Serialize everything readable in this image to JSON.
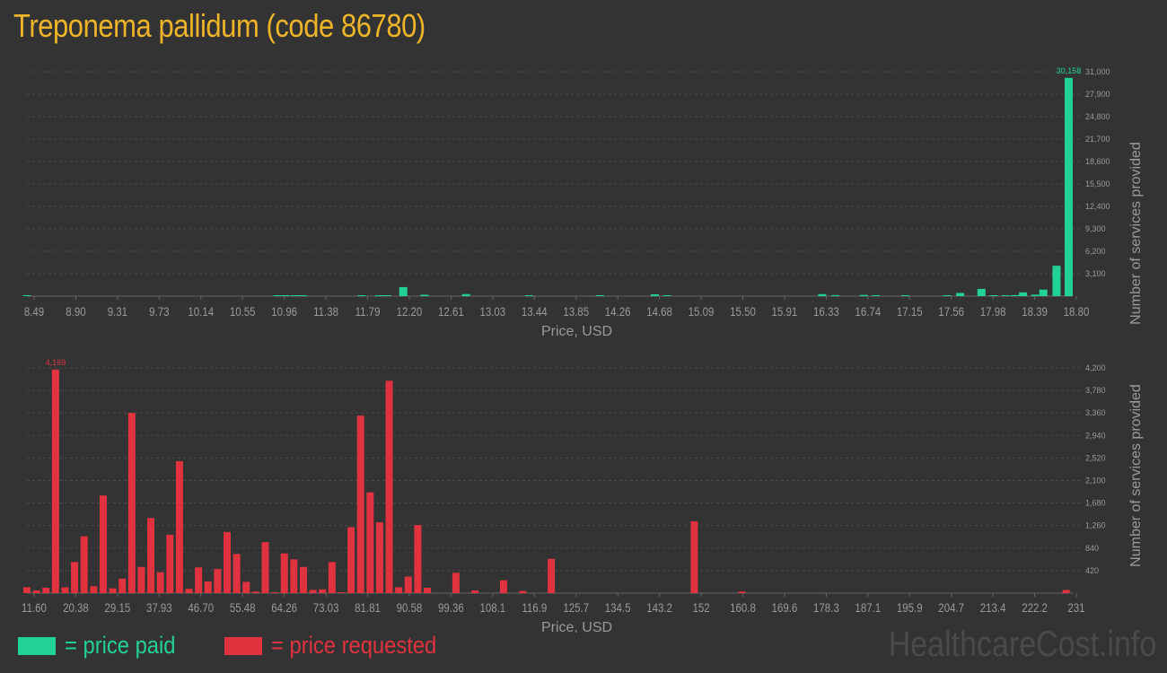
{
  "title": "Treponema pallidum (code 86780)",
  "watermark": "HealthcareCost.info",
  "legend": {
    "paid_label": "= price paid",
    "requested_label": "= price requested"
  },
  "colors": {
    "background": "#333333",
    "paid": "#22d196",
    "requested": "#e0323f",
    "title": "#f0b429",
    "grid": "#4a4a4a",
    "axis_text": "#9a9a9a"
  },
  "chart_data": [
    {
      "type": "bar",
      "series_name": "price paid",
      "xlabel": "Price, USD",
      "ylabel": "Number of services provided",
      "x_tick_labels": [
        "8.49",
        "8.90",
        "9.31",
        "9.73",
        "10.14",
        "10.55",
        "10.96",
        "11.38",
        "11.79",
        "12.20",
        "12.61",
        "13.03",
        "13.44",
        "13.85",
        "14.26",
        "14.68",
        "15.09",
        "15.50",
        "15.91",
        "16.33",
        "16.74",
        "17.15",
        "17.56",
        "17.98",
        "18.39",
        "18.80"
      ],
      "y_tick_labels": [
        "3,100",
        "6,200",
        "9,300",
        "12,400",
        "15,500",
        "18,600",
        "21,700",
        "24,800",
        "27,900",
        "31,000"
      ],
      "y_ticks": [
        3100,
        6200,
        9300,
        12400,
        15500,
        18600,
        21700,
        24800,
        27900,
        31000
      ],
      "ylim": [
        0,
        31000
      ],
      "xlim": [
        8.49,
        18.8
      ],
      "max_label": "30,158",
      "max_value": 30158,
      "bars": [
        {
          "x": 8.49,
          "y": 60
        },
        {
          "x": 10.96,
          "y": 45
        },
        {
          "x": 11.04,
          "y": 45
        },
        {
          "x": 11.13,
          "y": 45
        },
        {
          "x": 11.21,
          "y": 45
        },
        {
          "x": 11.79,
          "y": 40
        },
        {
          "x": 11.96,
          "y": 90
        },
        {
          "x": 12.04,
          "y": 50
        },
        {
          "x": 12.2,
          "y": 1250
        },
        {
          "x": 12.41,
          "y": 190
        },
        {
          "x": 12.82,
          "y": 280
        },
        {
          "x": 13.44,
          "y": 60
        },
        {
          "x": 14.14,
          "y": 50
        },
        {
          "x": 14.68,
          "y": 250
        },
        {
          "x": 14.8,
          "y": 70
        },
        {
          "x": 16.33,
          "y": 280
        },
        {
          "x": 16.46,
          "y": 140
        },
        {
          "x": 16.74,
          "y": 160
        },
        {
          "x": 16.86,
          "y": 60
        },
        {
          "x": 17.15,
          "y": 55
        },
        {
          "x": 17.56,
          "y": 55
        },
        {
          "x": 17.69,
          "y": 440
        },
        {
          "x": 17.9,
          "y": 1000
        },
        {
          "x": 18.02,
          "y": 90
        },
        {
          "x": 18.14,
          "y": 110
        },
        {
          "x": 18.23,
          "y": 140
        },
        {
          "x": 18.31,
          "y": 520
        },
        {
          "x": 18.43,
          "y": 200
        },
        {
          "x": 18.51,
          "y": 900
        },
        {
          "x": 18.64,
          "y": 4200
        },
        {
          "x": 18.76,
          "y": 30158
        }
      ]
    },
    {
      "type": "bar",
      "series_name": "price requested",
      "xlabel": "Price, USD",
      "ylabel": "Number of services provided",
      "x_tick_labels": [
        "11.60",
        "20.38",
        "29.15",
        "37.93",
        "46.70",
        "55.48",
        "64.26",
        "73.03",
        "81.81",
        "90.58",
        "99.36",
        "108.1",
        "116.9",
        "125.7",
        "134.5",
        "143.2",
        "152",
        "160.8",
        "169.6",
        "178.3",
        "187.1",
        "195.9",
        "204.7",
        "213.4",
        "222.2",
        "231"
      ],
      "y_tick_labels": [
        "420",
        "840",
        "1,260",
        "1,680",
        "2,100",
        "2,520",
        "2,940",
        "3,360",
        "3,780",
        "4,200"
      ],
      "y_ticks": [
        420,
        840,
        1260,
        1680,
        2100,
        2520,
        2940,
        3360,
        3780,
        4200
      ],
      "ylim": [
        0,
        4200
      ],
      "xlim": [
        11.6,
        231
      ],
      "max_label": "4,169",
      "max_value": 4169,
      "bars": [
        {
          "x": 11.6,
          "y": 110
        },
        {
          "x": 13.6,
          "y": 50
        },
        {
          "x": 15.6,
          "y": 100
        },
        {
          "x": 17.6,
          "y": 4169
        },
        {
          "x": 19.6,
          "y": 110
        },
        {
          "x": 21.6,
          "y": 580
        },
        {
          "x": 23.6,
          "y": 1060
        },
        {
          "x": 25.6,
          "y": 130
        },
        {
          "x": 27.6,
          "y": 1820
        },
        {
          "x": 29.6,
          "y": 90
        },
        {
          "x": 31.6,
          "y": 270
        },
        {
          "x": 33.6,
          "y": 3360
        },
        {
          "x": 35.6,
          "y": 490
        },
        {
          "x": 37.6,
          "y": 1400
        },
        {
          "x": 39.6,
          "y": 390
        },
        {
          "x": 41.6,
          "y": 1090
        },
        {
          "x": 43.6,
          "y": 2460
        },
        {
          "x": 45.6,
          "y": 80
        },
        {
          "x": 47.6,
          "y": 480
        },
        {
          "x": 49.6,
          "y": 220
        },
        {
          "x": 51.6,
          "y": 450
        },
        {
          "x": 53.6,
          "y": 1140
        },
        {
          "x": 55.6,
          "y": 730
        },
        {
          "x": 57.6,
          "y": 210
        },
        {
          "x": 59.6,
          "y": 30
        },
        {
          "x": 61.6,
          "y": 950
        },
        {
          "x": 63.6,
          "y": 10
        },
        {
          "x": 65.6,
          "y": 740
        },
        {
          "x": 67.6,
          "y": 630
        },
        {
          "x": 69.6,
          "y": 490
        },
        {
          "x": 71.6,
          "y": 60
        },
        {
          "x": 73.6,
          "y": 70
        },
        {
          "x": 75.6,
          "y": 580
        },
        {
          "x": 77.6,
          "y": 10
        },
        {
          "x": 79.6,
          "y": 1230
        },
        {
          "x": 81.6,
          "y": 3310
        },
        {
          "x": 83.6,
          "y": 1880
        },
        {
          "x": 85.6,
          "y": 1320
        },
        {
          "x": 87.6,
          "y": 3960
        },
        {
          "x": 89.6,
          "y": 110
        },
        {
          "x": 91.6,
          "y": 310
        },
        {
          "x": 93.6,
          "y": 1270
        },
        {
          "x": 95.6,
          "y": 100
        },
        {
          "x": 101.6,
          "y": 380
        },
        {
          "x": 105.6,
          "y": 50
        },
        {
          "x": 111.6,
          "y": 240
        },
        {
          "x": 115.6,
          "y": 40
        },
        {
          "x": 121.6,
          "y": 640
        },
        {
          "x": 151.6,
          "y": 1340
        },
        {
          "x": 161.6,
          "y": 30
        },
        {
          "x": 229.6,
          "y": 60
        }
      ]
    }
  ]
}
